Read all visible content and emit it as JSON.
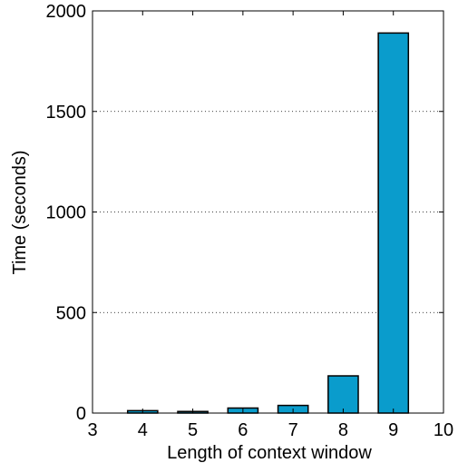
{
  "chart_data": {
    "type": "bar",
    "xlabel": "Length of context window",
    "ylabel": "Time (seconds)",
    "x": [
      4,
      5,
      6,
      7,
      8,
      9
    ],
    "values": [
      12,
      8,
      25,
      38,
      185,
      1890
    ],
    "xlim": [
      3,
      10
    ],
    "ylim": [
      0,
      2000
    ],
    "xticks": [
      "3",
      "4",
      "5",
      "6",
      "7",
      "8",
      "9",
      "10"
    ],
    "yticks": [
      "0",
      "500",
      "1000",
      "1500",
      "2000"
    ],
    "grid": "horizontal dotted",
    "bar_color": "#0a9ccc",
    "edge_color": "#000000"
  }
}
